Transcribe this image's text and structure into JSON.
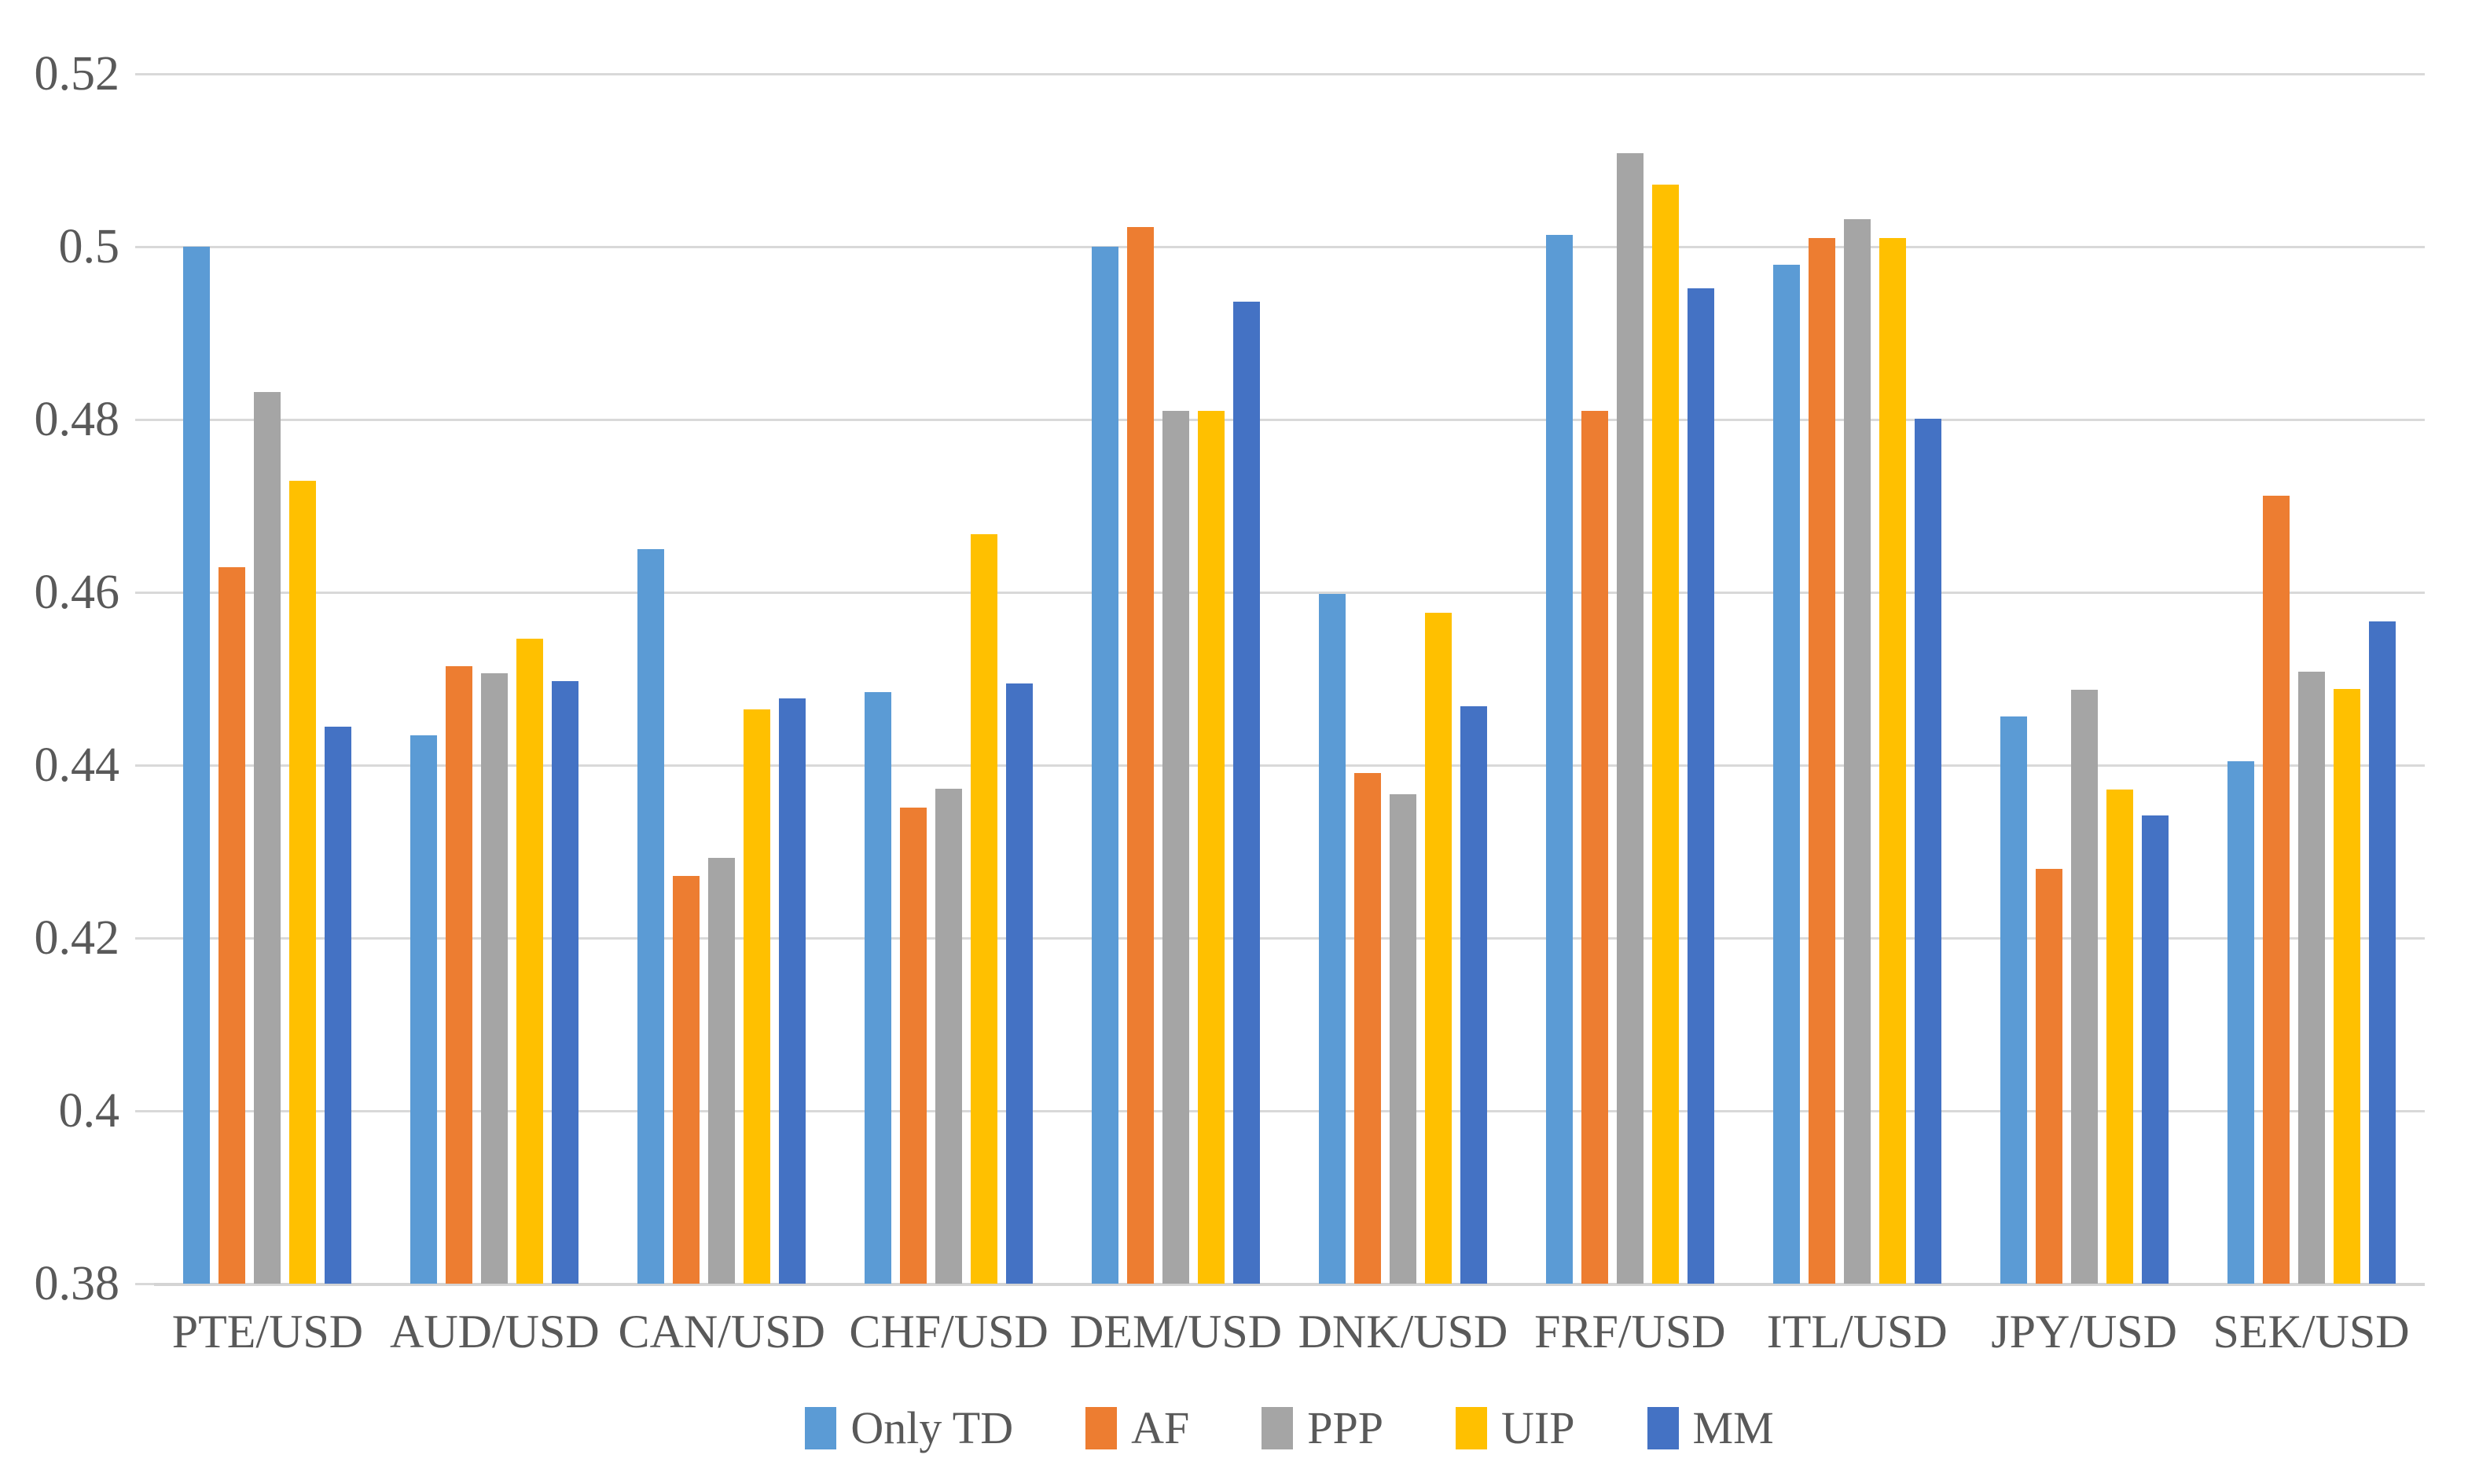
{
  "chart_data": {
    "type": "bar",
    "title": "",
    "categories": [
      "PTE/USD",
      "AUD/USD",
      "CAN/USD",
      "CHF/USD",
      "DEM/USD",
      "DNK/USD",
      "FRF/USD",
      "ITL/USD",
      "JPY/USD",
      "SEK/USD"
    ],
    "series": [
      {
        "name": "Only TD",
        "color": "#5B9BD5",
        "values": [
          0.5,
          0.4435,
          0.465,
          0.4485,
          0.5,
          0.4598,
          0.5014,
          0.4979,
          0.4456,
          0.4405
        ]
      },
      {
        "name": "AF",
        "color": "#ED7D31",
        "values": [
          0.4629,
          0.4515,
          0.4272,
          0.4351,
          0.5023,
          0.4391,
          0.481,
          0.501,
          0.428,
          0.4712
        ]
      },
      {
        "name": "PPP",
        "color": "#A5A5A5",
        "values": [
          0.4832,
          0.4506,
          0.4293,
          0.4373,
          0.481,
          0.4366,
          0.5108,
          0.5032,
          0.4487,
          0.4508
        ]
      },
      {
        "name": "UIP",
        "color": "#FFC000",
        "values": [
          0.4729,
          0.4546,
          0.4465,
          0.4667,
          0.481,
          0.4576,
          0.5072,
          0.501,
          0.4372,
          0.4488
        ]
      },
      {
        "name": "MM",
        "color": "#4472C4",
        "values": [
          0.4445,
          0.4497,
          0.4477,
          0.4495,
          0.4936,
          0.4468,
          0.4952,
          0.4801,
          0.4342,
          0.4566
        ]
      }
    ],
    "xlabel": "",
    "ylabel": "",
    "ylim": [
      0.38,
      0.52
    ],
    "ytick_step": 0.02,
    "ytick_labels": [
      "0.38",
      "0.4",
      "0.42",
      "0.44",
      "0.46",
      "0.48",
      "0.5",
      "0.52"
    ],
    "grid": true,
    "gridline_color": "#D9D9D9",
    "axis_line_color": "#D4D4D4",
    "axis_text_color": "#595959",
    "legend_position": "bottom"
  }
}
